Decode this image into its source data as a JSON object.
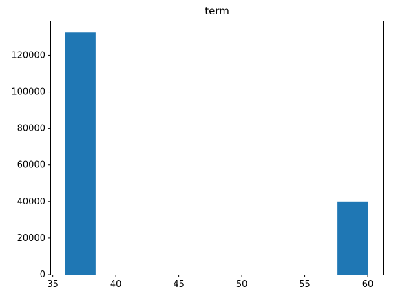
{
  "chart_data": {
    "type": "bar",
    "title": "term",
    "xlabel": "",
    "ylabel": "",
    "xlim": [
      34.8,
      61.2
    ],
    "ylim": [
      0,
      139000
    ],
    "xticks": [
      35,
      40,
      45,
      50,
      55,
      60
    ],
    "yticks": [
      0,
      20000,
      40000,
      60000,
      80000,
      100000,
      120000
    ],
    "bin_edges": [
      36,
      38.4,
      40.8,
      43.2,
      45.6,
      48,
      50.4,
      52.8,
      55.2,
      57.6,
      60
    ],
    "values": [
      132500,
      0,
      0,
      0,
      0,
      0,
      0,
      0,
      0,
      40000
    ],
    "color": "#1f77b4",
    "grid": false
  }
}
